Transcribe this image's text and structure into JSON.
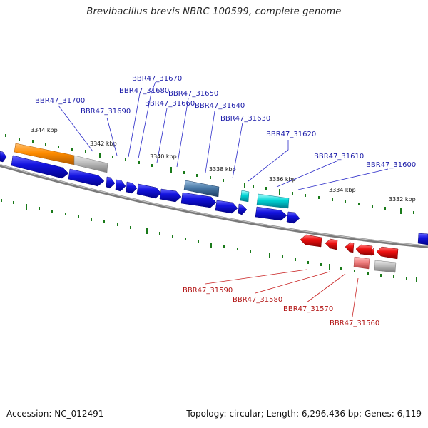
{
  "title": "Brevibacillus brevis NBRC 100599, complete genome",
  "footer": {
    "accession": "Accession: NC_012491",
    "summary": "Topology: circular; Length: 6,296,436 bp; Genes: 6,119"
  },
  "colors": {
    "forward_cds": "#1414e0",
    "reverse_cds": "#e01010",
    "rrna": "#ff8c00",
    "trna": "#00cccc",
    "other_feature": "#4a7aa8",
    "pseudo": "#b4b4b4",
    "backbone": "#808080",
    "tick": "#1a7a1a",
    "label_forward": "#1a1aa8",
    "label_reverse": "#b21414"
  },
  "kbp_labels": [
    "3344 kbp",
    "3342 kbp",
    "3340 kbp",
    "3338 kbp",
    "3336 kbp",
    "3334 kbp",
    "3332 kbp"
  ],
  "forward_gene_labels": [
    "BBR47_31700",
    "BBR47_31690",
    "BBR47_31680",
    "BBR47_31670",
    "BBR47_31660",
    "BBR47_31650",
    "BBR47_31640",
    "BBR47_31630",
    "BBR47_31620",
    "BBR47_31610",
    "BBR47_31600"
  ],
  "reverse_gene_labels": [
    "BBR47_31590",
    "BBR47_31580",
    "BBR47_31570",
    "BBR47_31560"
  ]
}
